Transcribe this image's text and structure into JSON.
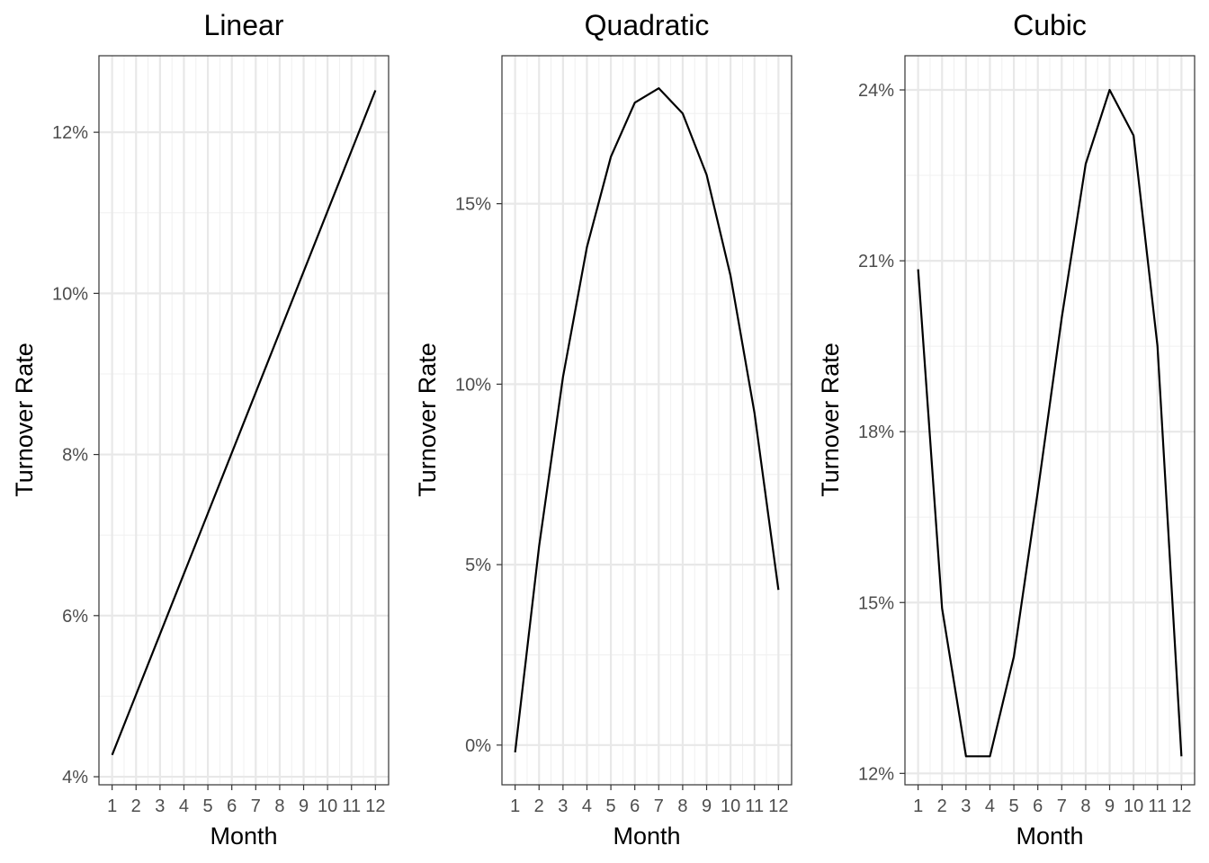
{
  "chart_data": [
    {
      "type": "line",
      "title": "Linear",
      "xlabel": "Month",
      "ylabel": "Turnover Rate",
      "x": [
        1,
        2,
        3,
        4,
        5,
        6,
        7,
        8,
        9,
        10,
        11,
        12
      ],
      "x_ticks": [
        "1",
        "2",
        "3",
        "4",
        "5",
        "6",
        "7",
        "8",
        "9",
        "10",
        "11",
        "12"
      ],
      "xlim": [
        0.45,
        12.55
      ],
      "ylim": [
        3.9,
        12.95
      ],
      "y_ticks": [
        4,
        6,
        8,
        10,
        12
      ],
      "y_tick_labels": [
        "4%",
        "6%",
        "8%",
        "10%",
        "12%"
      ],
      "series": [
        {
          "values": [
            4.27,
            5.02,
            5.77,
            6.52,
            7.27,
            8.02,
            8.77,
            9.52,
            10.27,
            11.02,
            11.77,
            12.52
          ]
        }
      ],
      "grid": true
    },
    {
      "type": "line",
      "title": "Quadratic",
      "xlabel": "Month",
      "ylabel": "Turnover Rate",
      "x": [
        1,
        2,
        3,
        4,
        5,
        6,
        7,
        8,
        9,
        10,
        11,
        12
      ],
      "x_ticks": [
        "1",
        "2",
        "3",
        "4",
        "5",
        "6",
        "7",
        "8",
        "9",
        "10",
        "11",
        "12"
      ],
      "xlim": [
        0.45,
        12.55
      ],
      "ylim": [
        -1.1,
        19.1
      ],
      "y_ticks": [
        0,
        5,
        10,
        15
      ],
      "y_tick_labels": [
        "0%",
        "5%",
        "10%",
        "15%"
      ],
      "series": [
        {
          "values": [
            -0.2,
            5.5,
            10.2,
            13.8,
            16.3,
            17.8,
            18.2,
            17.5,
            15.8,
            13.0,
            9.2,
            4.3
          ]
        }
      ],
      "grid": true
    },
    {
      "type": "line",
      "title": "Cubic",
      "xlabel": "Month",
      "ylabel": "Turnover Rate",
      "x": [
        1,
        2,
        3,
        4,
        5,
        6,
        7,
        8,
        9,
        10,
        11,
        12
      ],
      "x_ticks": [
        "1",
        "2",
        "3",
        "4",
        "5",
        "6",
        "7",
        "8",
        "9",
        "10",
        "11",
        "12"
      ],
      "xlim": [
        0.45,
        12.55
      ],
      "ylim": [
        11.8,
        24.6
      ],
      "y_ticks": [
        12,
        15,
        18,
        21,
        24
      ],
      "y_tick_labels": [
        "12%",
        "15%",
        "18%",
        "21%",
        "24%"
      ],
      "series": [
        {
          "values": [
            20.85,
            14.9,
            12.3,
            12.3,
            14.05,
            16.95,
            20.0,
            22.7,
            24.0,
            23.2,
            19.5,
            12.3
          ]
        }
      ],
      "grid": true
    }
  ]
}
